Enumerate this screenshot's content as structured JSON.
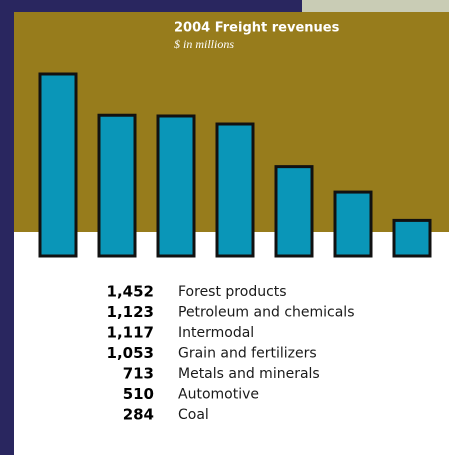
{
  "chart_data": {
    "type": "bar",
    "title": "2004 Freight revenues",
    "subtitle": "$ in millions",
    "categories": [
      "Forest products",
      "Petroleum and chemicals",
      "Intermodal",
      "Grain and fertilizers",
      "Metals and minerals",
      "Automotive",
      "Coal"
    ],
    "values": [
      1452,
      1123,
      1117,
      1053,
      713,
      510,
      284
    ],
    "value_labels": [
      "1,452",
      "1,123",
      "1,117",
      "1,053",
      "713",
      "510",
      "284"
    ],
    "color": "#0a96b8"
  }
}
